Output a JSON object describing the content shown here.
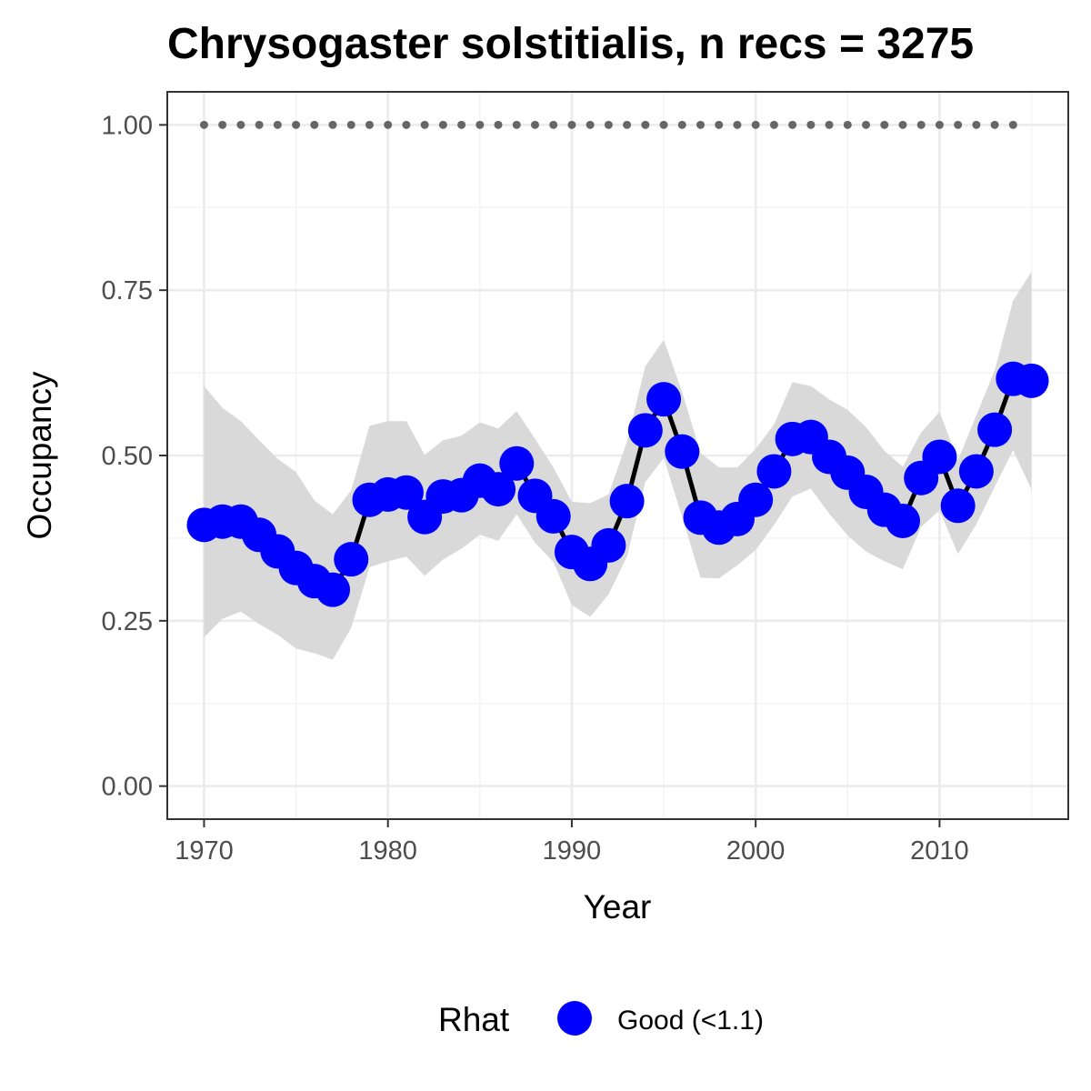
{
  "chart_data": {
    "type": "line",
    "title": "Chrysogaster solstitialis, n recs = 3275",
    "xlabel": "Year",
    "ylabel": "Occupancy",
    "xlim": [
      1968,
      2017
    ],
    "ylim": [
      -0.05,
      1.05
    ],
    "x_ticks": [
      1970,
      1980,
      1990,
      2000,
      2010
    ],
    "y_ticks": [
      0,
      0.25,
      0.5,
      0.75,
      1
    ],
    "x_tick_labels": [
      "1970",
      "1980",
      "1990",
      "2000",
      "2010"
    ],
    "y_tick_labels": [
      "0.00",
      "0.25",
      "0.50",
      "0.75",
      "1.00"
    ],
    "grid": true,
    "legend": {
      "position": "bottom",
      "title": "Rhat",
      "label": "Good (<1.1)"
    },
    "colors": {
      "points": "#0000ff",
      "line": "#000000",
      "ribbon": "#d9d9d9",
      "dotted_reference": "#666666"
    },
    "series": [
      {
        "name": "Good (<1.1)",
        "x": [
          1970,
          1971,
          1972,
          1973,
          1974,
          1975,
          1976,
          1977,
          1978,
          1979,
          1980,
          1981,
          1982,
          1983,
          1984,
          1985,
          1986,
          1987,
          1988,
          1989,
          1990,
          1991,
          1992,
          1993,
          1994,
          1995,
          1996,
          1997,
          1998,
          1999,
          2000,
          2001,
          2002,
          2003,
          2004,
          2005,
          2006,
          2007,
          2008,
          2009,
          2010,
          2011,
          2012,
          2013,
          2014,
          2015
        ],
        "y": [
          0.395,
          0.4,
          0.4,
          0.38,
          0.355,
          0.33,
          0.31,
          0.297,
          0.343,
          0.433,
          0.441,
          0.444,
          0.407,
          0.438,
          0.44,
          0.462,
          0.449,
          0.488,
          0.439,
          0.408,
          0.354,
          0.336,
          0.364,
          0.431,
          0.538,
          0.585,
          0.506,
          0.406,
          0.391,
          0.404,
          0.433,
          0.476,
          0.525,
          0.528,
          0.498,
          0.474,
          0.445,
          0.418,
          0.401,
          0.466,
          0.498,
          0.424,
          0.476,
          0.539,
          0.616,
          0.613
        ],
        "lower": [
          0.225,
          0.253,
          0.264,
          0.245,
          0.229,
          0.208,
          0.201,
          0.191,
          0.239,
          0.331,
          0.34,
          0.347,
          0.318,
          0.343,
          0.359,
          0.38,
          0.371,
          0.411,
          0.368,
          0.339,
          0.274,
          0.256,
          0.29,
          0.347,
          0.46,
          0.496,
          0.407,
          0.315,
          0.314,
          0.334,
          0.357,
          0.395,
          0.438,
          0.45,
          0.412,
          0.379,
          0.355,
          0.34,
          0.328,
          0.392,
          0.417,
          0.351,
          0.396,
          0.453,
          0.508,
          0.448
        ],
        "upper": [
          0.605,
          0.572,
          0.552,
          0.523,
          0.495,
          0.475,
          0.432,
          0.411,
          0.447,
          0.545,
          0.552,
          0.552,
          0.501,
          0.523,
          0.53,
          0.55,
          0.541,
          0.567,
          0.525,
          0.482,
          0.43,
          0.428,
          0.441,
          0.521,
          0.635,
          0.675,
          0.596,
          0.504,
          0.482,
          0.482,
          0.51,
          0.547,
          0.611,
          0.605,
          0.585,
          0.569,
          0.543,
          0.507,
          0.483,
          0.535,
          0.566,
          0.493,
          0.561,
          0.629,
          0.734,
          0.778
        ]
      },
      {
        "name": "",
        "x": [
          1970,
          1971,
          1972,
          1973,
          1974,
          1975,
          1976,
          1977,
          1978,
          1979,
          1980,
          1981,
          1982,
          1983,
          1984,
          1985,
          1986,
          1987,
          1988,
          1989,
          1990,
          1991,
          1992,
          1993,
          1994,
          1995,
          1996,
          1997,
          1998,
          1999,
          2000,
          2001,
          2002,
          2003,
          2004,
          2005,
          2006,
          2007,
          2008,
          2009,
          2010,
          2011,
          2012,
          2013,
          2014
        ],
        "y": [
          1,
          1,
          1,
          1,
          1,
          1,
          1,
          1,
          1,
          1,
          1,
          1,
          1,
          1,
          1,
          1,
          1,
          1,
          1,
          1,
          1,
          1,
          1,
          1,
          1,
          1,
          1,
          1,
          1,
          1,
          1,
          1,
          1,
          1,
          1,
          1,
          1,
          1,
          1,
          1,
          1,
          1,
          1,
          1,
          1
        ]
      }
    ]
  }
}
